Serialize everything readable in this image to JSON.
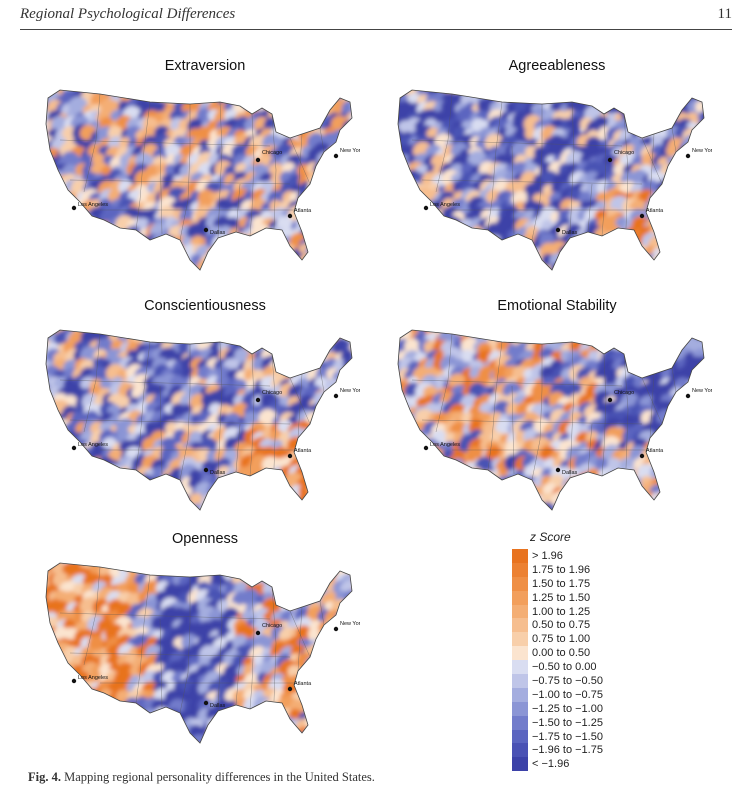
{
  "header": {
    "running_title": "Regional Psychological Differences",
    "page_number": "11"
  },
  "panels": [
    {
      "title": "Extraversion"
    },
    {
      "title": "Agreeableness"
    },
    {
      "title": "Conscientiousness"
    },
    {
      "title": "Emotional Stability"
    },
    {
      "title": "Openness"
    }
  ],
  "cities": {
    "chicago": "Chicago",
    "new_york": "New York",
    "los_angeles": "Los Angeles",
    "dallas": "Dallas",
    "atlanta": "Atlanta"
  },
  "legend": {
    "title": "z Score",
    "items": [
      {
        "label": "> 1.96",
        "color": "#e8731f"
      },
      {
        "label": "1.75 to 1.96",
        "color": "#ec8132"
      },
      {
        "label": "1.50 to 1.75",
        "color": "#ef8f45"
      },
      {
        "label": "1.25 to 1.50",
        "color": "#f29f5c"
      },
      {
        "label": "1.00 to 1.25",
        "color": "#f4ae74"
      },
      {
        "label": "0.50 to 0.75",
        "color": "#f6be8f"
      },
      {
        "label": "0.75 to 1.00",
        "color": "#f8cfaa"
      },
      {
        "label": "0.00 to 0.50",
        "color": "#fbe4cf"
      },
      {
        "label": "−0.50 to 0.00",
        "color": "#d9ddf1"
      },
      {
        "label": "−0.75 to −0.50",
        "color": "#bfc5e8"
      },
      {
        "label": "−1.00 to −0.75",
        "color": "#a4addf"
      },
      {
        "label": "−1.25 to −1.00",
        "color": "#8b95d5"
      },
      {
        "label": "−1.50 to −1.25",
        "color": "#727ccb"
      },
      {
        "label": "−1.75 to −1.50",
        "color": "#5b65c0"
      },
      {
        "label": "−1.96 to −1.75",
        "color": "#4a52b4"
      },
      {
        "label": "< −1.96",
        "color": "#3c42a8"
      }
    ]
  },
  "caption": {
    "label": "Fig. 4.",
    "text": " Mapping regional personality differences in the United States."
  }
}
